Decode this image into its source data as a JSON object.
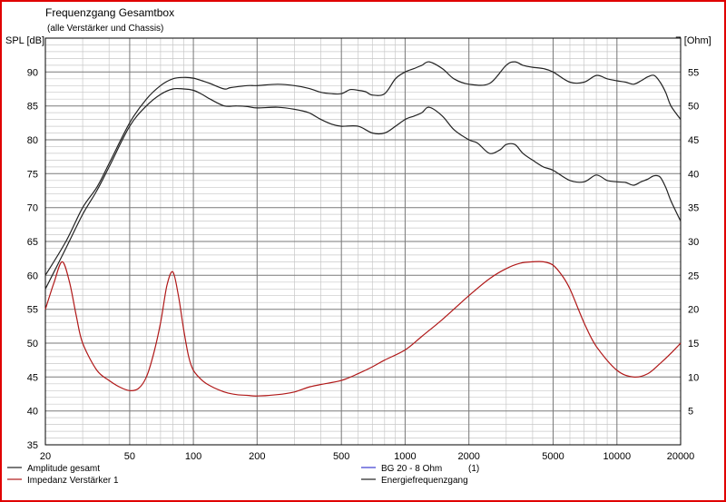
{
  "chart_data": {
    "type": "line",
    "title": "Frequenzgang Gesamtbox",
    "subtitle": "(alle Verstärker und Chassis)",
    "ylabel_left": "SPL [dB]",
    "ylabel_right": "Z [Ohm]",
    "x_scale": "log",
    "xlim": [
      20,
      20000
    ],
    "ylim_left": [
      35,
      95
    ],
    "ylim_right": [
      0,
      60
    ],
    "grid": true,
    "x_ticks": [
      20,
      50,
      100,
      200,
      500,
      1000,
      2000,
      5000,
      10000,
      20000
    ],
    "x_tick_labels": [
      "20",
      "50",
      "100",
      "200",
      "500",
      "1000",
      "2000",
      "5000",
      "10000",
      "20000"
    ],
    "y_left_ticks": [
      35,
      40,
      45,
      50,
      55,
      60,
      65,
      70,
      75,
      80,
      85,
      90
    ],
    "y_left_tick_labels": [
      "35",
      "40",
      "45",
      "50",
      "55",
      "60",
      "65",
      "70",
      "75",
      "80",
      "85",
      "90"
    ],
    "y_right_ticks": [
      5,
      10,
      15,
      20,
      25,
      30,
      35,
      40,
      45,
      50,
      55
    ],
    "y_right_tick_labels": [
      "5",
      "10",
      "15",
      "20",
      "25",
      "30",
      "35",
      "40",
      "45",
      "50",
      "55"
    ],
    "series": [
      {
        "name": "Amplitude gesamt",
        "axis": "left",
        "color": "#222222",
        "x": [
          20,
          25,
          30,
          35,
          40,
          50,
          60,
          70,
          80,
          90,
          100,
          110,
          120,
          140,
          160,
          180,
          200,
          250,
          300,
          350,
          400,
          450,
          500,
          600,
          700,
          800,
          900,
          1000,
          1100,
          1200,
          1300,
          1500,
          1700,
          2000,
          2200,
          2500,
          2800,
          3000,
          3300,
          3600,
          4000,
          4500,
          5000,
          6000,
          7000,
          8000,
          9000,
          10000,
          11000,
          12000,
          13000,
          14000,
          15000,
          16000,
          17000,
          18000,
          20000
        ],
        "y": [
          58,
          64,
          69,
          72.5,
          76,
          82,
          85,
          86.7,
          87.5,
          87.5,
          87.3,
          86.7,
          86,
          85,
          85,
          84.9,
          84.7,
          84.8,
          84.5,
          84,
          83,
          82.3,
          82,
          82,
          81,
          81,
          82,
          83,
          83.5,
          84,
          84.8,
          83.5,
          81.5,
          80,
          79.5,
          78,
          78.5,
          79.3,
          79.3,
          78,
          77,
          76,
          75.5,
          74,
          73.8,
          74.8,
          74,
          73.8,
          73.7,
          73.3,
          73.8,
          74.2,
          74.7,
          74.5,
          73,
          71,
          68
        ]
      },
      {
        "name": "Impedanz Verstärker 1",
        "axis": "right",
        "color": "#b01818",
        "x": [
          20,
          22,
          24,
          26,
          28,
          30,
          35,
          40,
          45,
          50,
          55,
          60,
          65,
          70,
          75,
          80,
          85,
          90,
          95,
          100,
          110,
          120,
          140,
          160,
          180,
          200,
          250,
          300,
          350,
          400,
          500,
          600,
          700,
          800,
          1000,
          1200,
          1500,
          2000,
          2500,
          3000,
          3500,
          4000,
          4500,
          5000,
          5500,
          6000,
          7000,
          8000,
          10000,
          12000,
          14000,
          16000,
          18000,
          20000
        ],
        "y": [
          20,
          24,
          27,
          24,
          19,
          15,
          11,
          9.5,
          8.5,
          8,
          8.3,
          10,
          13.5,
          18,
          23.5,
          25.5,
          22,
          17,
          13,
          11,
          9.5,
          8.7,
          7.8,
          7.4,
          7.3,
          7.2,
          7.4,
          7.8,
          8.5,
          8.9,
          9.5,
          10.5,
          11.5,
          12.5,
          14,
          16,
          18.5,
          22,
          24.5,
          26,
          26.8,
          27,
          27,
          26.5,
          25,
          23,
          18,
          14.5,
          11,
          10,
          10.5,
          12,
          13.5,
          15
        ]
      },
      {
        "name": "Energiefrequenzgang",
        "axis": "left",
        "color": "#222222",
        "x": [
          20,
          25,
          30,
          35,
          40,
          50,
          60,
          70,
          80,
          90,
          100,
          110,
          120,
          140,
          150,
          180,
          200,
          250,
          300,
          350,
          400,
          450,
          500,
          550,
          600,
          650,
          700,
          800,
          900,
          1000,
          1100,
          1200,
          1300,
          1500,
          1700,
          2000,
          2500,
          3000,
          3300,
          3600,
          4000,
          4500,
          5000,
          6000,
          7000,
          8000,
          9000,
          10000,
          11000,
          12000,
          13000,
          14000,
          15000,
          16000,
          17000,
          18000,
          20000
        ],
        "y": [
          60,
          65,
          70,
          73,
          76.5,
          82.5,
          86,
          88,
          89,
          89.2,
          89.1,
          88.7,
          88.3,
          87.5,
          87.7,
          88,
          88,
          88.2,
          88,
          87.6,
          87,
          86.8,
          86.8,
          87.4,
          87.3,
          87.1,
          86.6,
          86.8,
          89,
          90,
          90.5,
          91,
          91.5,
          90.5,
          89,
          88.2,
          88.3,
          91,
          91.5,
          91,
          90.7,
          90.5,
          90,
          88.5,
          88.5,
          89.5,
          89,
          88.7,
          88.5,
          88.2,
          88.7,
          89.3,
          89.5,
          88.5,
          87,
          85,
          83
        ]
      },
      {
        "name": "BG 20 - 8 Ohm",
        "axis": "left",
        "color": "#3a3ad0",
        "x": [],
        "y": []
      }
    ],
    "legend": [
      {
        "label": "Amplitude gesamt",
        "color": "#222222",
        "suffix": ""
      },
      {
        "label": "Impedanz Verstärker 1",
        "color": "#b01818",
        "suffix": ""
      },
      {
        "label": "BG 20 - 8 Ohm",
        "color": "#3a3ad0",
        "suffix": "(1)"
      },
      {
        "label": "Energiefrequenzgang",
        "color": "#222222",
        "suffix": ""
      }
    ]
  }
}
